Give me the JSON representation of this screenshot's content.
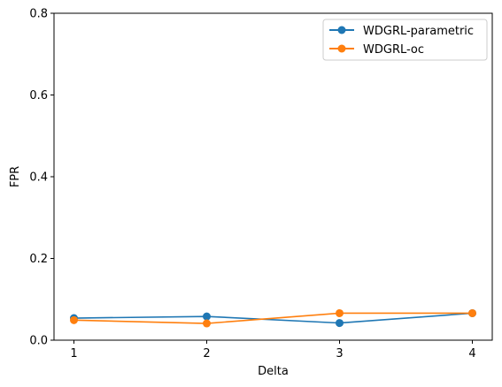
{
  "chart_data": {
    "type": "line",
    "xlabel": "Delta",
    "ylabel": "FPR",
    "x": [
      1,
      2,
      3,
      4
    ],
    "x_ticks": [
      "1",
      "2",
      "3",
      "4"
    ],
    "ylim": [
      0,
      0.8
    ],
    "y_ticks": [
      "0.0",
      "0.2",
      "0.4",
      "0.6",
      "0.8"
    ],
    "grid": false,
    "legend_position": "top-right",
    "series": [
      {
        "name": "WDGRL-parametric",
        "color": "#1f77b4",
        "values": [
          0.054,
          0.058,
          0.042,
          0.066
        ]
      },
      {
        "name": "WDGRL-oc",
        "color": "#ff7f0e",
        "values": [
          0.049,
          0.041,
          0.066,
          0.066
        ]
      }
    ]
  }
}
